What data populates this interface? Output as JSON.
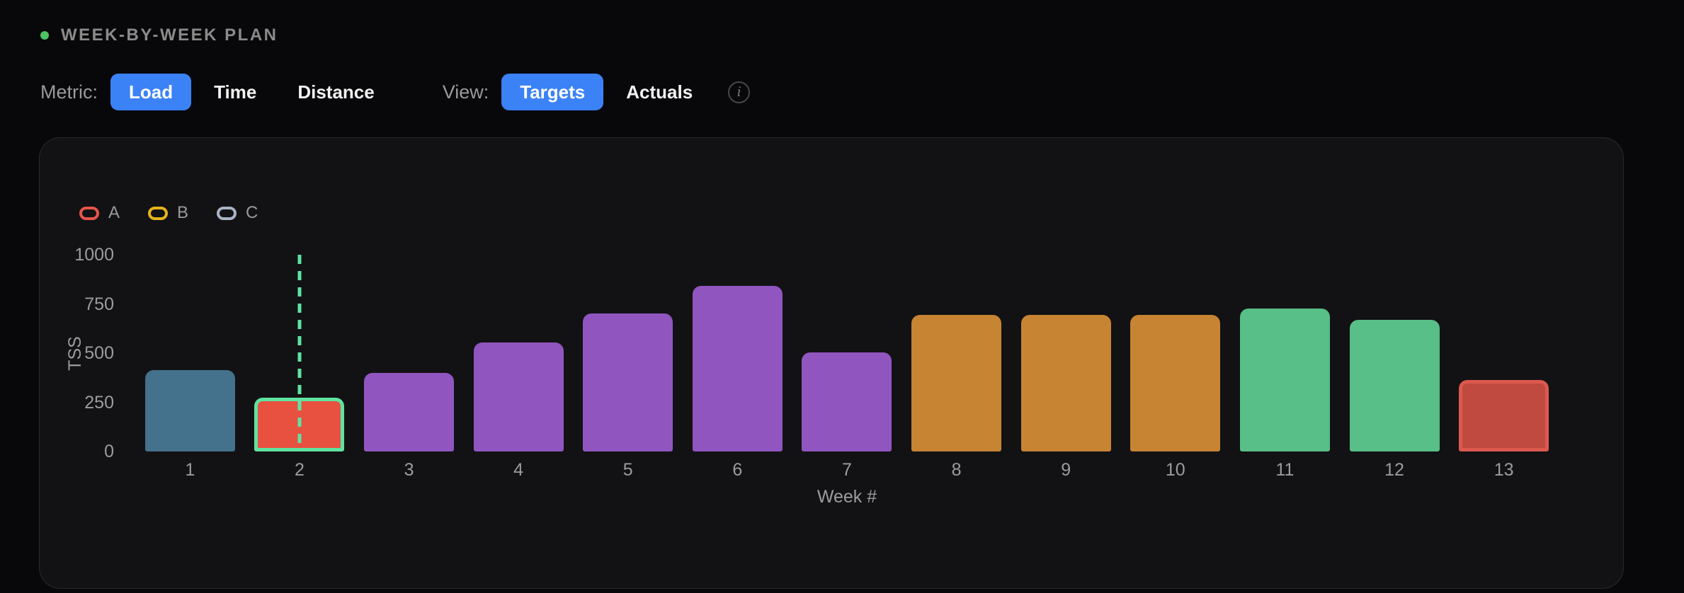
{
  "header": {
    "title": "WEEK-BY-WEEK PLAN",
    "accent_dot_color": "#4cc464"
  },
  "controls": {
    "metric_label": "Metric:",
    "metric_options": [
      {
        "label": "Load",
        "selected": true
      },
      {
        "label": "Time",
        "selected": false
      },
      {
        "label": "Distance",
        "selected": false
      }
    ],
    "view_label": "View:",
    "view_options": [
      {
        "label": "Targets",
        "selected": true
      },
      {
        "label": "Actuals",
        "selected": false
      }
    ],
    "info_icon": "info-circle",
    "selected_bg": "#3b82f6"
  },
  "chart_data": {
    "type": "bar",
    "title": "",
    "xlabel": "Week #",
    "ylabel": "TSS",
    "ylim": [
      0,
      1000
    ],
    "yticks": [
      0,
      250,
      500,
      750,
      1000
    ],
    "grid": false,
    "legend_position": "top-left",
    "legend": [
      {
        "label": "A",
        "color": "#e8544a"
      },
      {
        "label": "B",
        "color": "#e6b31e"
      },
      {
        "label": "C",
        "color": "#a8b4c4"
      }
    ],
    "categories": [
      "1",
      "2",
      "3",
      "4",
      "5",
      "6",
      "7",
      "8",
      "9",
      "10",
      "11",
      "12",
      "13"
    ],
    "values": [
      415,
      275,
      400,
      555,
      700,
      840,
      505,
      695,
      695,
      695,
      725,
      670,
      365
    ],
    "bar_colors": [
      "#44718c",
      "#e8503f",
      "#9155c0",
      "#9155c0",
      "#9155c0",
      "#9155c0",
      "#9155c0",
      "#c78432",
      "#c78432",
      "#c78432",
      "#57bf87",
      "#57bf87",
      "#c04a40"
    ],
    "bar_borders": [
      null,
      "#5fe3a1",
      null,
      null,
      null,
      null,
      null,
      null,
      null,
      null,
      null,
      null,
      "#dd584e"
    ],
    "current_week_index": 1,
    "current_week_line_color": "#5fe3a1"
  }
}
